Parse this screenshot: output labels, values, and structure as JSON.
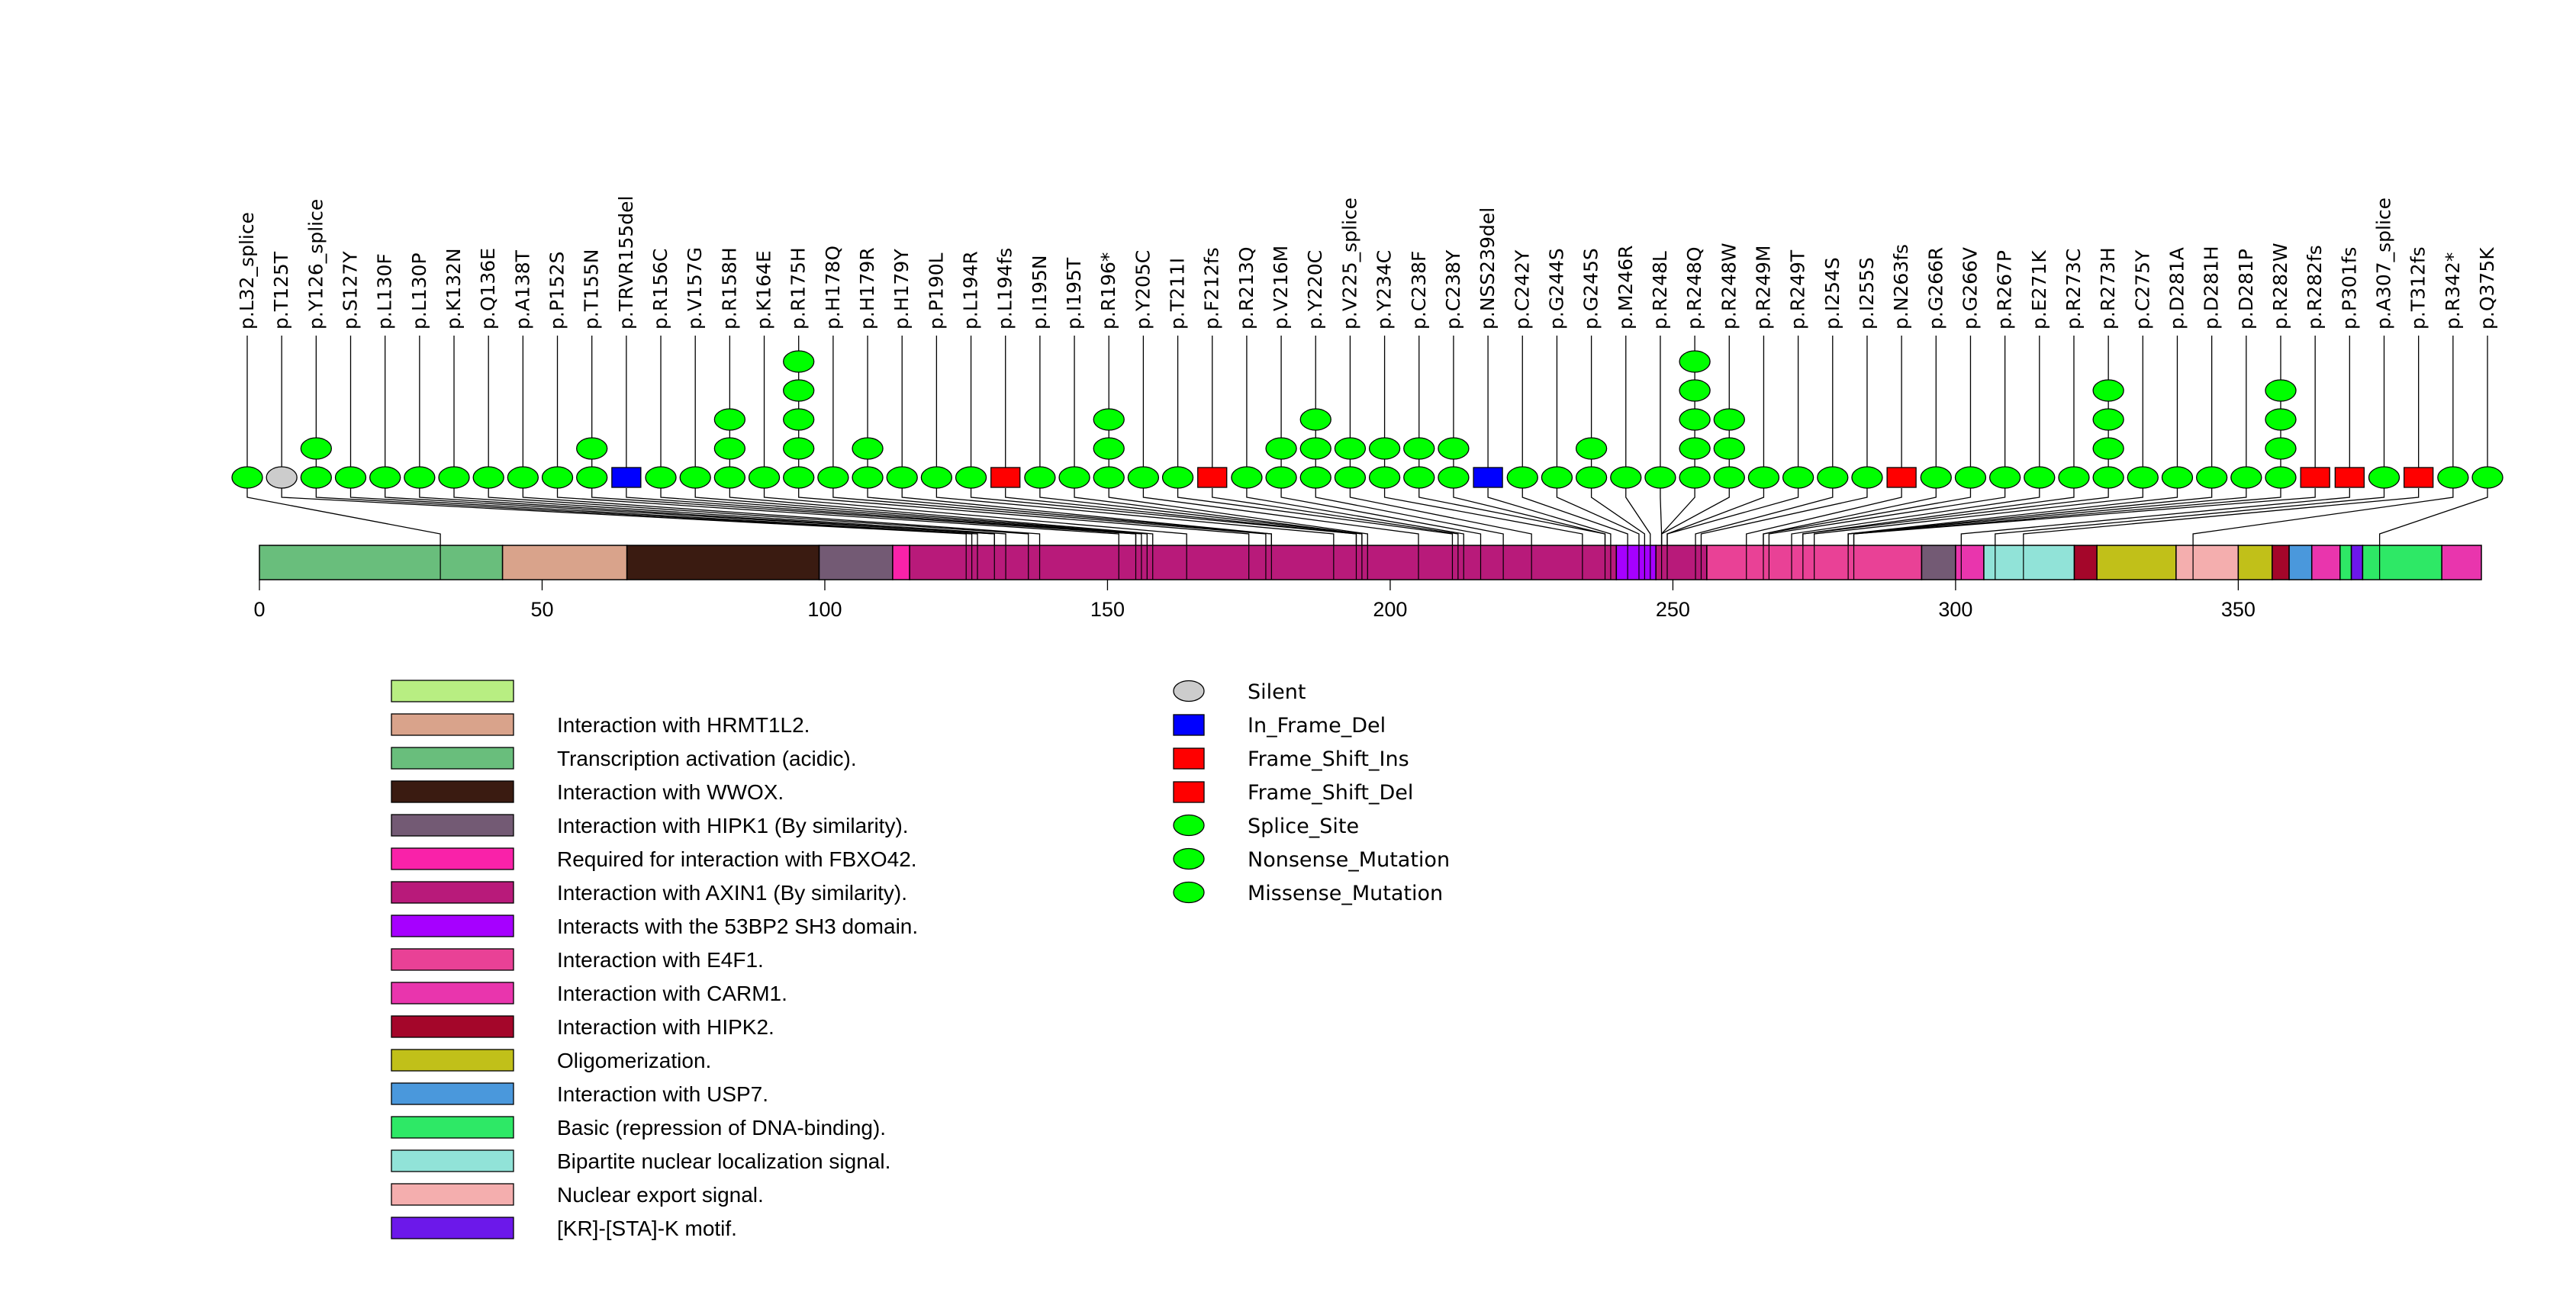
{
  "chart_data": {
    "type": "lollipop",
    "title": "",
    "xlabel": "",
    "ylabel": "",
    "protein_length": 393,
    "xlim": [
      0,
      393
    ],
    "x_ticks": [
      0,
      50,
      100,
      150,
      200,
      250,
      300,
      350
    ],
    "x_tick_labels": [
      "0",
      "50",
      "100",
      "150",
      "200",
      "250",
      "300",
      "350"
    ],
    "mutation_types": [
      {
        "name": "Silent",
        "shape": "ellipse",
        "color": "#cccccc"
      },
      {
        "name": "In_Frame_Del",
        "shape": "square",
        "color": "#0000ff"
      },
      {
        "name": "Frame_Shift_Ins",
        "shape": "square",
        "color": "#ff0000"
      },
      {
        "name": "Frame_Shift_Del",
        "shape": "square",
        "color": "#ff0000"
      },
      {
        "name": "Splice_Site",
        "shape": "ellipse",
        "color": "#00ff00"
      },
      {
        "name": "Nonsense_Mutation",
        "shape": "ellipse",
        "color": "#00ff00"
      },
      {
        "name": "Missense_Mutation",
        "shape": "ellipse",
        "color": "#00ff00"
      }
    ],
    "mutations": [
      {
        "label": "p.L32_splice",
        "position": 32,
        "count": 1,
        "type": "Splice_Site"
      },
      {
        "label": "p.T125T",
        "position": 125,
        "count": 1,
        "type": "Silent"
      },
      {
        "label": "p.Y126_splice",
        "position": 126,
        "count": 2,
        "type": "Splice_Site"
      },
      {
        "label": "p.S127Y",
        "position": 127,
        "count": 1,
        "type": "Missense_Mutation"
      },
      {
        "label": "p.L130F",
        "position": 130,
        "count": 1,
        "type": "Missense_Mutation"
      },
      {
        "label": "p.L130P",
        "position": 130,
        "count": 1,
        "type": "Missense_Mutation"
      },
      {
        "label": "p.K132N",
        "position": 132,
        "count": 1,
        "type": "Missense_Mutation"
      },
      {
        "label": "p.Q136E",
        "position": 136,
        "count": 1,
        "type": "Missense_Mutation"
      },
      {
        "label": "p.A138T",
        "position": 138,
        "count": 1,
        "type": "Missense_Mutation"
      },
      {
        "label": "p.P152S",
        "position": 152,
        "count": 1,
        "type": "Missense_Mutation"
      },
      {
        "label": "p.T155N",
        "position": 155,
        "count": 2,
        "type": "Missense_Mutation"
      },
      {
        "label": "p.TRVR155del",
        "position": 155,
        "count": 1,
        "type": "In_Frame_Del"
      },
      {
        "label": "p.R156C",
        "position": 156,
        "count": 1,
        "type": "Missense_Mutation"
      },
      {
        "label": "p.V157G",
        "position": 157,
        "count": 1,
        "type": "Missense_Mutation"
      },
      {
        "label": "p.R158H",
        "position": 158,
        "count": 3,
        "type": "Missense_Mutation"
      },
      {
        "label": "p.K164E",
        "position": 164,
        "count": 1,
        "type": "Missense_Mutation"
      },
      {
        "label": "p.R175H",
        "position": 175,
        "count": 5,
        "type": "Missense_Mutation"
      },
      {
        "label": "p.H178Q",
        "position": 178,
        "count": 1,
        "type": "Missense_Mutation"
      },
      {
        "label": "p.H179R",
        "position": 179,
        "count": 2,
        "type": "Missense_Mutation"
      },
      {
        "label": "p.H179Y",
        "position": 179,
        "count": 1,
        "type": "Missense_Mutation"
      },
      {
        "label": "p.P190L",
        "position": 190,
        "count": 1,
        "type": "Missense_Mutation"
      },
      {
        "label": "p.L194R",
        "position": 194,
        "count": 1,
        "type": "Missense_Mutation"
      },
      {
        "label": "p.L194fs",
        "position": 194,
        "count": 1,
        "type": "Frame_Shift_Del"
      },
      {
        "label": "p.I195N",
        "position": 195,
        "count": 1,
        "type": "Missense_Mutation"
      },
      {
        "label": "p.I195T",
        "position": 195,
        "count": 1,
        "type": "Missense_Mutation"
      },
      {
        "label": "p.R196*",
        "position": 196,
        "count": 3,
        "type": "Nonsense_Mutation"
      },
      {
        "label": "p.Y205C",
        "position": 205,
        "count": 1,
        "type": "Missense_Mutation"
      },
      {
        "label": "p.T211I",
        "position": 211,
        "count": 1,
        "type": "Missense_Mutation"
      },
      {
        "label": "p.F212fs",
        "position": 212,
        "count": 1,
        "type": "Frame_Shift_Del"
      },
      {
        "label": "p.R213Q",
        "position": 213,
        "count": 1,
        "type": "Missense_Mutation"
      },
      {
        "label": "p.V216M",
        "position": 216,
        "count": 2,
        "type": "Missense_Mutation"
      },
      {
        "label": "p.Y220C",
        "position": 220,
        "count": 3,
        "type": "Missense_Mutation"
      },
      {
        "label": "p.V225_splice",
        "position": 225,
        "count": 2,
        "type": "Splice_Site"
      },
      {
        "label": "p.Y234C",
        "position": 234,
        "count": 2,
        "type": "Missense_Mutation"
      },
      {
        "label": "p.C238F",
        "position": 238,
        "count": 2,
        "type": "Missense_Mutation"
      },
      {
        "label": "p.C238Y",
        "position": 238,
        "count": 2,
        "type": "Missense_Mutation"
      },
      {
        "label": "p.NSS239del",
        "position": 239,
        "count": 1,
        "type": "In_Frame_Del"
      },
      {
        "label": "p.C242Y",
        "position": 242,
        "count": 1,
        "type": "Missense_Mutation"
      },
      {
        "label": "p.G244S",
        "position": 244,
        "count": 1,
        "type": "Missense_Mutation"
      },
      {
        "label": "p.G245S",
        "position": 245,
        "count": 2,
        "type": "Missense_Mutation"
      },
      {
        "label": "p.M246R",
        "position": 246,
        "count": 1,
        "type": "Missense_Mutation"
      },
      {
        "label": "p.R248L",
        "position": 248,
        "count": 1,
        "type": "Missense_Mutation"
      },
      {
        "label": "p.R248Q",
        "position": 248,
        "count": 5,
        "type": "Missense_Mutation"
      },
      {
        "label": "p.R248W",
        "position": 248,
        "count": 3,
        "type": "Missense_Mutation"
      },
      {
        "label": "p.R249M",
        "position": 249,
        "count": 1,
        "type": "Missense_Mutation"
      },
      {
        "label": "p.R249T",
        "position": 249,
        "count": 1,
        "type": "Missense_Mutation"
      },
      {
        "label": "p.I254S",
        "position": 254,
        "count": 1,
        "type": "Missense_Mutation"
      },
      {
        "label": "p.I255S",
        "position": 255,
        "count": 1,
        "type": "Missense_Mutation"
      },
      {
        "label": "p.N263fs",
        "position": 263,
        "count": 1,
        "type": "Frame_Shift_Del"
      },
      {
        "label": "p.G266R",
        "position": 266,
        "count": 1,
        "type": "Missense_Mutation"
      },
      {
        "label": "p.G266V",
        "position": 266,
        "count": 1,
        "type": "Missense_Mutation"
      },
      {
        "label": "p.R267P",
        "position": 267,
        "count": 1,
        "type": "Missense_Mutation"
      },
      {
        "label": "p.E271K",
        "position": 271,
        "count": 1,
        "type": "Missense_Mutation"
      },
      {
        "label": "p.R273C",
        "position": 273,
        "count": 1,
        "type": "Missense_Mutation"
      },
      {
        "label": "p.R273H",
        "position": 273,
        "count": 4,
        "type": "Missense_Mutation"
      },
      {
        "label": "p.C275Y",
        "position": 275,
        "count": 1,
        "type": "Missense_Mutation"
      },
      {
        "label": "p.D281A",
        "position": 281,
        "count": 1,
        "type": "Missense_Mutation"
      },
      {
        "label": "p.D281H",
        "position": 281,
        "count": 1,
        "type": "Missense_Mutation"
      },
      {
        "label": "p.D281P",
        "position": 281,
        "count": 1,
        "type": "Missense_Mutation"
      },
      {
        "label": "p.R282W",
        "position": 282,
        "count": 4,
        "type": "Missense_Mutation"
      },
      {
        "label": "p.R282fs",
        "position": 282,
        "count": 1,
        "type": "Frame_Shift_Del"
      },
      {
        "label": "p.P301fs",
        "position": 301,
        "count": 1,
        "type": "Frame_Shift_Del"
      },
      {
        "label": "p.A307_splice",
        "position": 307,
        "count": 1,
        "type": "Splice_Site"
      },
      {
        "label": "p.T312fs",
        "position": 312,
        "count": 1,
        "type": "Frame_Shift_Del"
      },
      {
        "label": "p.R342*",
        "position": 342,
        "count": 1,
        "type": "Nonsense_Mutation"
      },
      {
        "label": "p.Q375K",
        "position": 375,
        "count": 1,
        "type": "Missense_Mutation"
      }
    ],
    "domains": [
      {
        "name": "Transcription activation (acidic).",
        "start": 0,
        "end": 43,
        "color": "#69be7c"
      },
      {
        "name": "Interaction with HRMT1L2.",
        "start": 43,
        "end": 65,
        "color": "#d9a38b"
      },
      {
        "name": "Interaction with WWOX.",
        "start": 65,
        "end": 99,
        "color": "#3a1b11"
      },
      {
        "name": "Interaction with HIPK1 (By similarity).",
        "start": 99,
        "end": 112,
        "color": "#735a74"
      },
      {
        "name": "Required for interaction with FBXO42.",
        "start": 112,
        "end": 115,
        "color": "#f922a9"
      },
      {
        "name": "Interaction with AXIN1 (By similarity).",
        "start": 115,
        "end": 240,
        "color": "#b81a7a"
      },
      {
        "name": "Interacts with the 53BP2 SH3 domain.",
        "start": 240,
        "end": 247,
        "color": "#a600ff"
      },
      {
        "name": "Interaction with AXIN1 (By similarity).",
        "start": 247,
        "end": 256,
        "color": "#b81a7a"
      },
      {
        "name": "Interaction with E4F1.",
        "start": 256,
        "end": 294,
        "color": "#e94196"
      },
      {
        "name": "Interaction with HIPK1 (By similarity).",
        "start": 294,
        "end": 300,
        "color": "#735a74"
      },
      {
        "name": "Interaction with CARM1.",
        "start": 300,
        "end": 305,
        "color": "#e935ad"
      },
      {
        "name": "Bipartite nuclear localization signal.",
        "start": 305,
        "end": 321,
        "color": "#91e3d8"
      },
      {
        "name": "Interaction with HIPK2.",
        "start": 321,
        "end": 325,
        "color": "#a4062a"
      },
      {
        "name": "Oligomerization.",
        "start": 325,
        "end": 339,
        "color": "#c1c019"
      },
      {
        "name": "Nuclear export signal.",
        "start": 339,
        "end": 350,
        "color": "#f4aeae"
      },
      {
        "name": "Oligomerization.",
        "start": 350,
        "end": 356,
        "color": "#c1c019"
      },
      {
        "name": "Interaction with HIPK2.",
        "start": 356,
        "end": 359,
        "color": "#a4062a"
      },
      {
        "name": "Interaction with USP7.",
        "start": 359,
        "end": 363,
        "color": "#4a98dc"
      },
      {
        "name": "Interaction with CARM1.",
        "start": 363,
        "end": 368,
        "color": "#e935ad"
      },
      {
        "name": "Basic (repression of DNA-binding).",
        "start": 368,
        "end": 370,
        "color": "#2ee866"
      },
      {
        "name": "[KR]-[STA]-K motif.",
        "start": 370,
        "end": 372,
        "color": "#6c18ea"
      },
      {
        "name": "Basic (repression of DNA-binding).",
        "start": 372,
        "end": 386,
        "color": "#2ee866"
      },
      {
        "name": "Interaction with CARM1.",
        "start": 386,
        "end": 393,
        "color": "#e935ad"
      }
    ],
    "domain_legend": [
      {
        "name": "",
        "color": "#b8ee82"
      },
      {
        "name": "Interaction with HRMT1L2.",
        "color": "#d9a38b"
      },
      {
        "name": "Transcription activation (acidic).",
        "color": "#69be7c"
      },
      {
        "name": "Interaction with WWOX.",
        "color": "#3a1b11"
      },
      {
        "name": "Interaction with HIPK1 (By similarity).",
        "color": "#735a74"
      },
      {
        "name": "Required for interaction with FBXO42.",
        "color": "#f922a9"
      },
      {
        "name": "Interaction with AXIN1 (By similarity).",
        "color": "#b81a7a"
      },
      {
        "name": "Interacts with the 53BP2 SH3 domain.",
        "color": "#a600ff"
      },
      {
        "name": "Interaction with E4F1.",
        "color": "#e94196"
      },
      {
        "name": "Interaction with CARM1.",
        "color": "#e935ad"
      },
      {
        "name": "Interaction with HIPK2.",
        "color": "#a4062a"
      },
      {
        "name": "Oligomerization.",
        "color": "#c1c019"
      },
      {
        "name": "Interaction with USP7.",
        "color": "#4a98dc"
      },
      {
        "name": "Basic (repression of DNA-binding).",
        "color": "#2ee866"
      },
      {
        "name": "Bipartite nuclear localization signal.",
        "color": "#91e3d8"
      },
      {
        "name": "Nuclear export signal.",
        "color": "#f4aeae"
      },
      {
        "name": "[KR]-[STA]-K motif.",
        "color": "#6c18ea"
      }
    ],
    "legend_placement": "bottom"
  }
}
